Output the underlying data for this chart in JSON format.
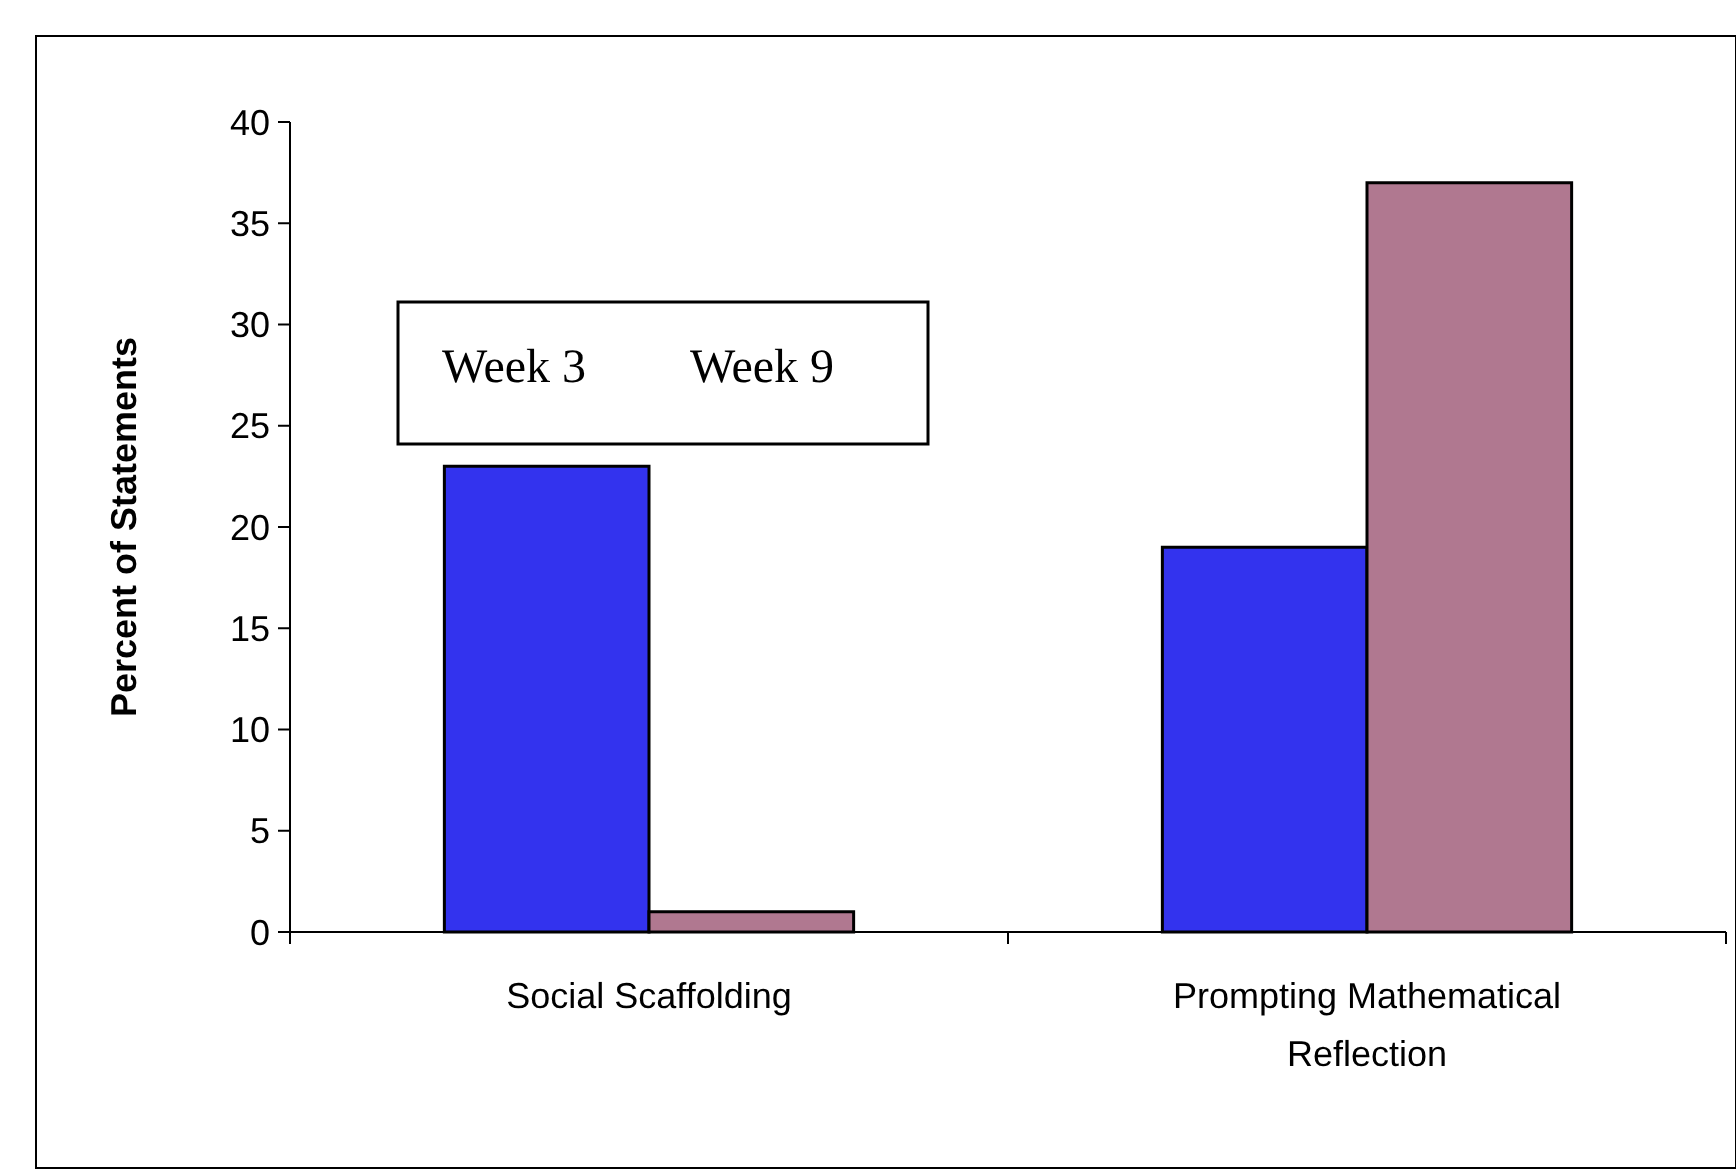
{
  "chart_data": {
    "type": "bar",
    "ylabel": "Percent of Statements",
    "categories": [
      "Social Scaffolding",
      "Prompting Mathematical Reflection"
    ],
    "series": [
      {
        "name": "Week 3",
        "color": "#3333ee",
        "values": [
          23,
          19
        ]
      },
      {
        "name": "Week 9",
        "color": "#b07890",
        "values": [
          1,
          37
        ]
      }
    ],
    "ylim": [
      0,
      40
    ],
    "yticks": [
      0,
      5,
      10,
      15,
      20,
      25,
      30,
      35,
      40
    ],
    "legend": "top left",
    "grid": false
  }
}
